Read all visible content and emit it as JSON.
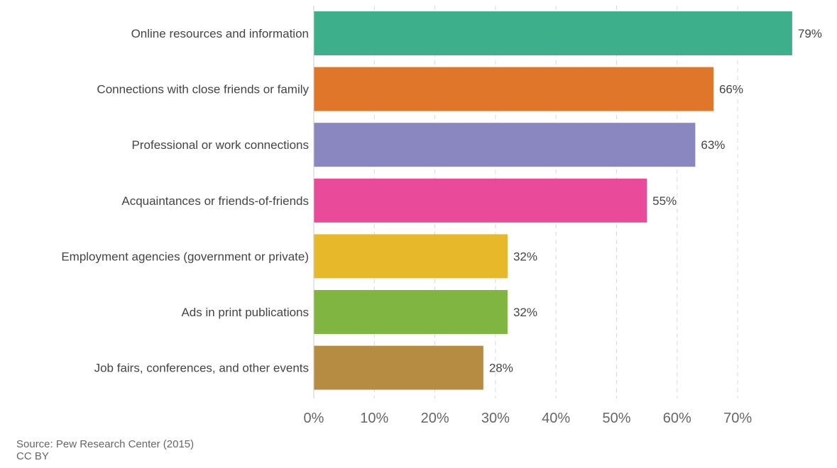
{
  "chart_data": {
    "type": "bar",
    "orientation": "horizontal",
    "categories": [
      "Online resources and information",
      "Connections with close friends or family",
      "Professional or work connections",
      "Acquaintances or friends-of-friends",
      "Employment agencies (government or private)",
      "Ads in print publications",
      "Job fairs, conferences, and other events"
    ],
    "values": [
      79,
      66,
      63,
      55,
      32,
      32,
      28
    ],
    "value_labels": [
      "79%",
      "66%",
      "63%",
      "55%",
      "32%",
      "32%",
      "28%"
    ],
    "colors": [
      "#3daf8b",
      "#e0762a",
      "#8a87c0",
      "#ea4a9a",
      "#e8b82b",
      "#7fb540",
      "#b58c42"
    ],
    "xlim": [
      0,
      79
    ],
    "xticks": [
      0,
      10,
      20,
      30,
      40,
      50,
      60,
      70
    ],
    "xtick_labels": [
      "0%",
      "10%",
      "20%",
      "30%",
      "40%",
      "50%",
      "60%",
      "70%"
    ],
    "grid": "vertical dashed",
    "title": "",
    "xlabel": "",
    "ylabel": ""
  },
  "footer": {
    "source": "Source: Pew Research Center (2015)",
    "license": "CC BY"
  }
}
